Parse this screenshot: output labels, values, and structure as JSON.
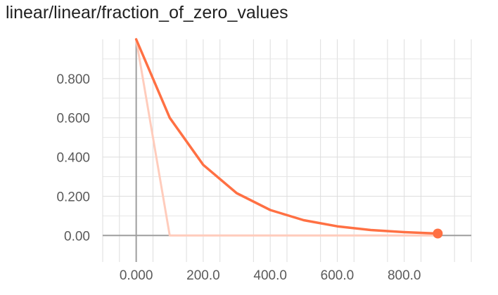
{
  "chart_data": {
    "type": "line",
    "title": "linear/linear/fraction_of_zero_values",
    "xlabel": "",
    "ylabel": "",
    "xlim": [
      -100,
      1000
    ],
    "ylim": [
      -0.135,
      1.0
    ],
    "x_ticks": [
      {
        "value": 0,
        "label": "0.000"
      },
      {
        "value": 200,
        "label": "200.0"
      },
      {
        "value": 400,
        "label": "400.0"
      },
      {
        "value": 600,
        "label": "600.0"
      },
      {
        "value": 800,
        "label": "800.0"
      }
    ],
    "y_ticks": [
      {
        "value": 0.0,
        "label": "0.00"
      },
      {
        "value": 0.2,
        "label": "0.200"
      },
      {
        "value": 0.4,
        "label": "0.400"
      },
      {
        "value": 0.6,
        "label": "0.600"
      },
      {
        "value": 0.8,
        "label": "0.800"
      }
    ],
    "grid": true,
    "series": [
      {
        "x": [
          0,
          100,
          200,
          300,
          400,
          500,
          600,
          700,
          800,
          900
        ],
        "values": [
          1.0,
          0.6,
          0.36,
          0.216,
          0.13,
          0.078,
          0.047,
          0.028,
          0.017,
          0.01
        ],
        "color": "#ff7043"
      },
      {
        "x": [
          0,
          100,
          200,
          300,
          400,
          500,
          600,
          700,
          800,
          900
        ],
        "values": [
          1.0,
          0.0,
          0.0,
          0.0,
          0.0,
          0.0,
          0.0,
          0.0,
          0.0,
          0.0
        ],
        "color": "#ffccbc"
      }
    ],
    "highlight_point": {
      "x": 900,
      "y": 0.01
    }
  }
}
